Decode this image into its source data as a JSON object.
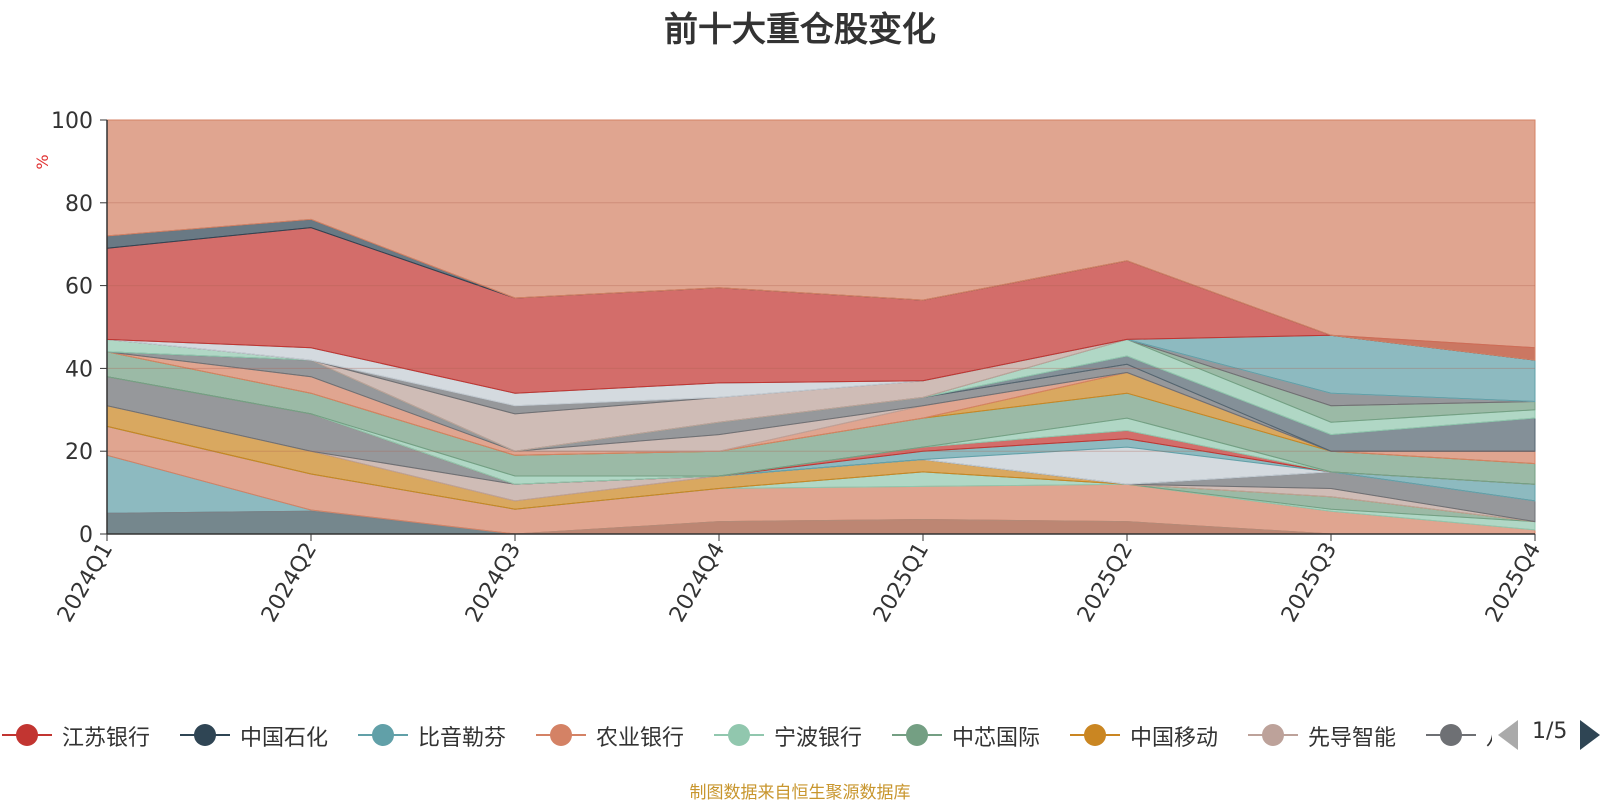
{
  "chart_data": {
    "type": "area",
    "title": "前十大重仓股变化",
    "ylabel": "%",
    "ylim": [
      0,
      100
    ],
    "yticks": [
      0,
      20,
      40,
      60,
      80,
      100
    ],
    "categories": [
      "2024Q1",
      "2024Q2",
      "2024Q3",
      "2024Q4",
      "2025Q1",
      "2025Q2",
      "2025Q3",
      "2025Q4"
    ],
    "legend_visible": [
      "江苏银行",
      "中国石化",
      "比音勒芬",
      "农业银行",
      "宁波银行",
      "中芯国际",
      "中国移动",
      "先导智能",
      "八"
    ],
    "legend_page": "1/5",
    "source": "制图数据来自恒生聚源数据库",
    "bands": [
      {
        "color": "#2f4554",
        "values": [
          5,
          5.5,
          0,
          0,
          0,
          0,
          0,
          0
        ]
      },
      {
        "color": "#c23531",
        "values": [
          0,
          0,
          0,
          3,
          3.5,
          3,
          0,
          0
        ]
      },
      {
        "color": "#61a0a8",
        "values": [
          19,
          5.8,
          0,
          0,
          0,
          0,
          0,
          0
        ]
      },
      {
        "color": "#d48265",
        "values": [
          26,
          14.5,
          6,
          11,
          11.5,
          12,
          5.5,
          1
        ]
      },
      {
        "color": "#91c7ae",
        "values": [
          26,
          14.5,
          6,
          11,
          15,
          12,
          6,
          3
        ]
      },
      {
        "color": "#749f83",
        "values": [
          26,
          14.5,
          6,
          11,
          15,
          12,
          9,
          3
        ]
      },
      {
        "color": "#ca8622",
        "values": [
          31,
          20,
          8,
          14,
          18,
          12,
          9,
          3
        ]
      },
      {
        "color": "#bda29a",
        "values": [
          31,
          20,
          12,
          14,
          18,
          12,
          11,
          3
        ]
      },
      {
        "color": "#6e7074",
        "values": [
          38,
          29,
          12,
          14,
          18,
          12,
          15,
          8
        ]
      },
      {
        "color": "#546570",
        "values": [
          38,
          29,
          12,
          14,
          18,
          12,
          15,
          8
        ]
      },
      {
        "color": "#c4ccd3",
        "values": [
          38,
          29,
          12,
          14,
          18,
          21,
          15,
          8
        ]
      },
      {
        "color": "#61a0a8",
        "values": [
          38,
          29,
          12,
          14,
          20,
          23,
          15,
          12
        ]
      },
      {
        "color": "#c23531",
        "values": [
          38,
          29,
          12,
          14,
          21,
          25,
          15,
          12
        ]
      },
      {
        "color": "#91c7ae",
        "values": [
          38,
          29,
          14,
          14,
          21,
          28,
          15,
          12
        ]
      },
      {
        "color": "#749f83",
        "values": [
          44,
          34,
          19,
          20,
          28,
          34,
          20,
          17
        ]
      },
      {
        "color": "#ca8622",
        "values": [
          44,
          34,
          19,
          20,
          28,
          39,
          20,
          17
        ]
      },
      {
        "color": "#d48265",
        "values": [
          44,
          38,
          20,
          20,
          31,
          39,
          20,
          20
        ]
      },
      {
        "color": "#bda29a",
        "values": [
          44,
          38,
          20,
          24,
          31,
          39,
          20,
          20
        ]
      },
      {
        "color": "#6e7074",
        "values": [
          44,
          42,
          20,
          27,
          33,
          41,
          20,
          20
        ]
      },
      {
        "color": "#546570",
        "values": [
          44,
          42,
          20,
          27,
          33,
          43,
          24,
          28
        ]
      },
      {
        "color": "#91c7ae",
        "values": [
          47,
          42,
          20,
          27,
          33,
          47,
          27,
          30
        ]
      },
      {
        "color": "#749f83",
        "values": [
          47,
          42,
          20,
          27,
          33,
          47,
          31,
          32
        ]
      },
      {
        "color": "#bda29a",
        "values": [
          47,
          42,
          29,
          33,
          37,
          47,
          31,
          32
        ]
      },
      {
        "color": "#6e7074",
        "values": [
          47,
          42,
          31,
          33,
          37,
          47,
          34,
          32
        ]
      },
      {
        "color": "#c4ccd3",
        "values": [
          47,
          45,
          34,
          36.5,
          37,
          47,
          34,
          32
        ]
      },
      {
        "color": "#61a0a8",
        "values": [
          47,
          45,
          34,
          36.5,
          37,
          47,
          48,
          45
        ]
      },
      {
        "color": "#c23531",
        "values": [
          69,
          74,
          57,
          59.5,
          56.5,
          66,
          48,
          42
        ]
      },
      {
        "color": "#2f4554",
        "values": [
          72,
          76,
          57,
          59.5,
          56.5,
          66,
          48,
          42
        ]
      },
      {
        "color": "#d48265",
        "values": [
          100,
          100,
          100,
          100,
          100,
          100,
          100,
          100
        ]
      }
    ],
    "bands_comment": "cumulative upper boundaries of stacked areas, in percent"
  },
  "legend_colors": [
    "#c23531",
    "#2f4554",
    "#61a0a8",
    "#d48265",
    "#91c7ae",
    "#749f83",
    "#ca8622",
    "#bda29a",
    "#6e7074"
  ],
  "ylabel_color": "#e03030"
}
